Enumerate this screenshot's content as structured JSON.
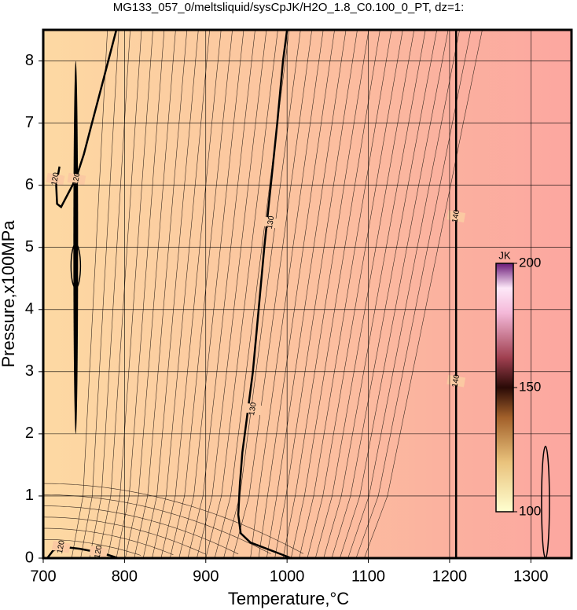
{
  "chart_data": {
    "type": "contour",
    "title": "MG133_057_0/meltsliquid/sysCpJK/H2O_1.8_C0.100_0_PT, dz=1:",
    "x_label": "Temperature,°C",
    "y_label": "Pressure,x100MPa",
    "xlim": [
      700,
      1350
    ],
    "ylim": [
      0,
      8.5
    ],
    "xticks": [
      700,
      800,
      900,
      1000,
      1100,
      1200,
      1300
    ],
    "yticks": [
      0,
      1,
      2,
      3,
      4,
      5,
      6,
      7,
      8
    ],
    "grid": true,
    "contours": [
      {
        "level": 120,
        "x": [
          790,
          780,
          770,
          760,
          750,
          740,
          730,
          722,
          717,
          716,
          720
        ],
        "y": [
          8.5,
          8.0,
          7.5,
          7.0,
          6.5,
          6.1,
          5.85,
          5.65,
          5.7,
          6.0,
          6.3
        ],
        "label_x": [
          715,
          741
        ],
        "label_y": [
          6.1,
          6.1
        ]
      },
      {
        "level": 120,
        "x": [
          705,
          712,
          725,
          745,
          765,
          780,
          792
        ],
        "y": [
          0.0,
          0.12,
          0.18,
          0.15,
          0.1,
          0.05,
          0.0
        ],
        "label_x": [
          722,
          768
        ],
        "label_y": [
          0.18,
          0.1
        ]
      },
      {
        "level": 130,
        "x": [
          1000,
          995,
          988,
          980,
          972,
          965,
          958,
          950,
          945,
          942,
          940,
          943,
          955,
          975,
          995,
          1005
        ],
        "y": [
          8.5,
          8.0,
          7.0,
          6.0,
          5.0,
          4.0,
          3.0,
          2.2,
          1.7,
          1.2,
          0.7,
          0.4,
          0.25,
          0.15,
          0.05,
          0.0
        ],
        "label_x": [
          980,
          958
        ],
        "label_y": [
          5.4,
          2.4
        ]
      },
      {
        "level": 140,
        "x": [
          1208,
          1208
        ],
        "y": [
          0,
          8.5
        ],
        "label_x": [
          1208,
          1208
        ],
        "label_y": [
          5.5,
          2.85
        ]
      }
    ],
    "colorbar": {
      "label": "JK",
      "lim": [
        100,
        200
      ],
      "ticks": [
        100,
        150,
        200
      ]
    }
  }
}
